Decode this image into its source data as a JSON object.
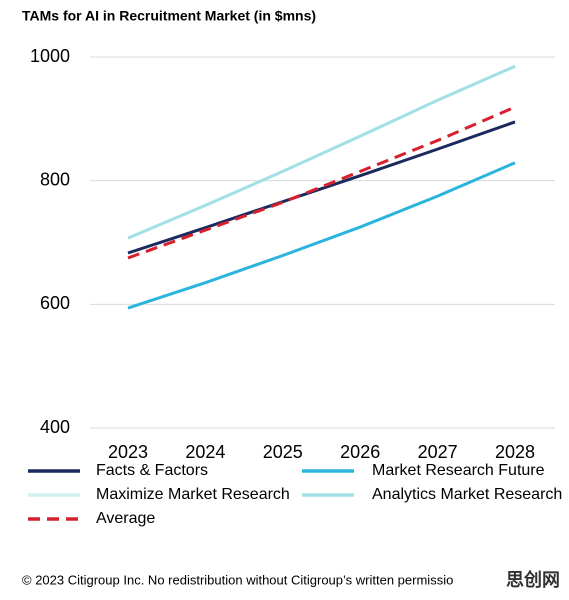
{
  "chart_data": {
    "type": "line",
    "title": "TAMs for AI in Recruitment Market (in $mns)",
    "categories": [
      "2023",
      "2024",
      "2025",
      "2026",
      "2027",
      "2028"
    ],
    "series": [
      {
        "name": "Facts & Factors",
        "color": "#1b2a5e",
        "values": [
          683,
          724,
          766,
          808,
          851,
          895
        ]
      },
      {
        "name": "Market Research Future",
        "color": "#2bb5dd",
        "values": [
          594,
          635,
          679,
          725,
          775,
          829
        ]
      },
      {
        "name": "Maximize Market Research",
        "color": "#d2f0f4",
        "values": [
          707,
          760,
          815,
          872,
          930,
          985
        ]
      },
      {
        "name": "Analytics Market Research",
        "color": "#a3e0e6",
        "values": [
          707,
          760,
          815,
          872,
          930,
          985
        ]
      },
      {
        "name": "Average",
        "color": "#d6202e",
        "dashed": true,
        "values": [
          675,
          720,
          765,
          815,
          865,
          919
        ]
      }
    ],
    "ylim": [
      400,
      1000
    ],
    "yticks": [
      400,
      600,
      800,
      1000
    ],
    "grid": true,
    "footer": "© 2023 Citigroup Inc. No redistribution without Citigroup’s written permissio",
    "watermark": "思创网"
  }
}
